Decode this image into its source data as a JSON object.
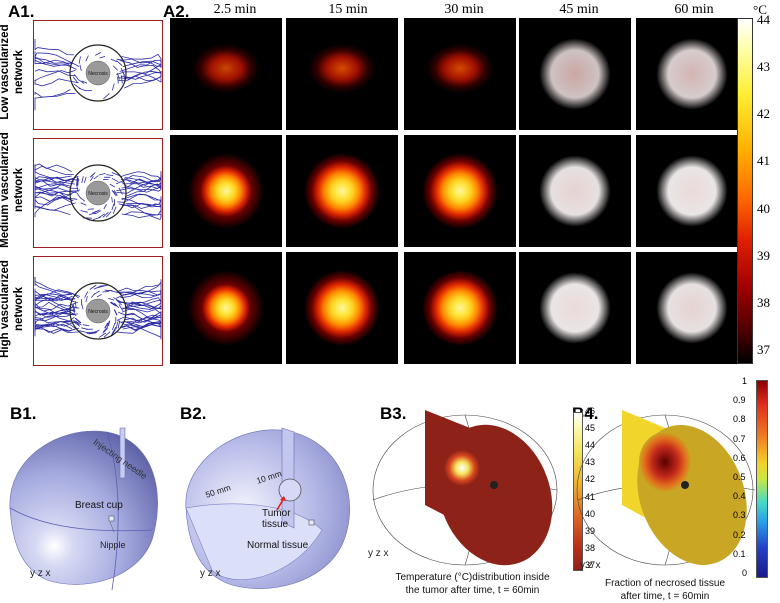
{
  "labels": {
    "a1": "A1.",
    "a2": "A2.",
    "b1": "B1.",
    "b2": "B2.",
    "b3": "B3.",
    "b4": "B4."
  },
  "times": [
    "2.5 min",
    "15 min",
    "30 min",
    "45 min",
    "60 min"
  ],
  "rows": [
    {
      "line1": "Low vascularized",
      "line2": "network",
      "necrosis": "Necrosis"
    },
    {
      "line1": "Medium vascularized",
      "line2": "network",
      "necrosis": "Necrosis"
    },
    {
      "line1": "High vascularized",
      "line2": "network",
      "necrosis": "Necrosis"
    }
  ],
  "temp_colorbar": {
    "unit": "°C",
    "ticks": [
      "44",
      "43",
      "42",
      "41",
      "40",
      "39",
      "38",
      "37"
    ]
  },
  "heatmaps": [
    [
      0.45,
      0.62,
      0.58,
      0.12,
      0.1
    ],
    [
      0.85,
      1.0,
      1.0,
      0.06,
      0.05
    ],
    [
      0.8,
      1.0,
      1.0,
      0.05,
      0.06
    ]
  ],
  "b1": {
    "needle": "Injecting needle",
    "cup": "Breast cup",
    "nipple": "Nipple",
    "axes": "y z x"
  },
  "b2": {
    "d50": "50 mm",
    "d10": "10 mm",
    "tumor": "Tumor tissue",
    "normal": "Normal tissue",
    "axes": "y z x"
  },
  "b3": {
    "ticks": [
      "46",
      "45",
      "44",
      "43",
      "42",
      "41",
      "40",
      "39",
      "38",
      "37"
    ],
    "caption1": "Temperature (°C)distribution inside",
    "caption2": "the tumor after time, t = 60min",
    "axes": "y z x"
  },
  "b4": {
    "ticks": [
      "1",
      "0.9",
      "0.8",
      "0.7",
      "0.6",
      "0.5",
      "0.4",
      "0.3",
      "0.2",
      "0.1",
      "0"
    ],
    "caption1": "Fraction of necrosed tissue",
    "caption2": "after time, t = 60min",
    "axes": "y z x"
  },
  "colors": {
    "frame": "#a21e1e",
    "vessel": "#2a2aa8",
    "model": "#a9aee3"
  }
}
